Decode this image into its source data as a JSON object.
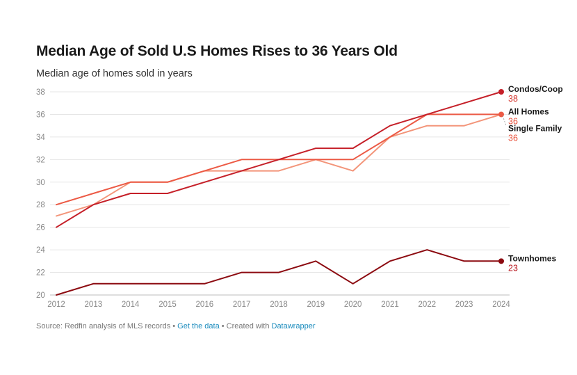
{
  "title": "Median Age of Sold U.S Homes Rises to 36 Years Old",
  "subtitle": "Median age of homes sold in years",
  "footer": {
    "source": "Source: Redfin analysis of MLS records",
    "sep1": " • ",
    "get_data": "Get the data",
    "sep2": " • Created with ",
    "tool": "Datawrapper"
  },
  "chart_data": {
    "type": "line",
    "x": [
      2012,
      2013,
      2014,
      2015,
      2016,
      2017,
      2018,
      2019,
      2020,
      2021,
      2022,
      2023,
      2024
    ],
    "ylim": [
      20,
      38
    ],
    "yticks": [
      20,
      22,
      24,
      26,
      28,
      30,
      32,
      34,
      36,
      38
    ],
    "grid": true,
    "legend": "direct labels at right end",
    "series": [
      {
        "name": "All Homes",
        "color": "#f3957a",
        "label_color": "#e8503a",
        "marker": false,
        "values": [
          27,
          28,
          30,
          30,
          31,
          31,
          31,
          32,
          31,
          34,
          35,
          35,
          36
        ],
        "end_label": "36"
      },
      {
        "name": "Single Family",
        "color": "#ec5a45",
        "label_color": "#e8503a",
        "marker": true,
        "values": [
          28,
          29,
          30,
          30,
          31,
          32,
          32,
          32,
          32,
          34,
          36,
          36,
          36
        ],
        "end_label": "36"
      },
      {
        "name": "Condos/Coop",
        "color": "#c51f28",
        "label_color": "#d4332b",
        "marker": true,
        "values": [
          26,
          28,
          29,
          29,
          30,
          31,
          32,
          33,
          33,
          35,
          36,
          37,
          38
        ],
        "end_label": "38"
      },
      {
        "name": "Townhomes",
        "color": "#8c0a10",
        "label_color": "#b8151d",
        "marker": true,
        "values": [
          20,
          21,
          21,
          21,
          21,
          22,
          22,
          23,
          21,
          23,
          24,
          23,
          23
        ],
        "end_label": "23"
      }
    ]
  }
}
